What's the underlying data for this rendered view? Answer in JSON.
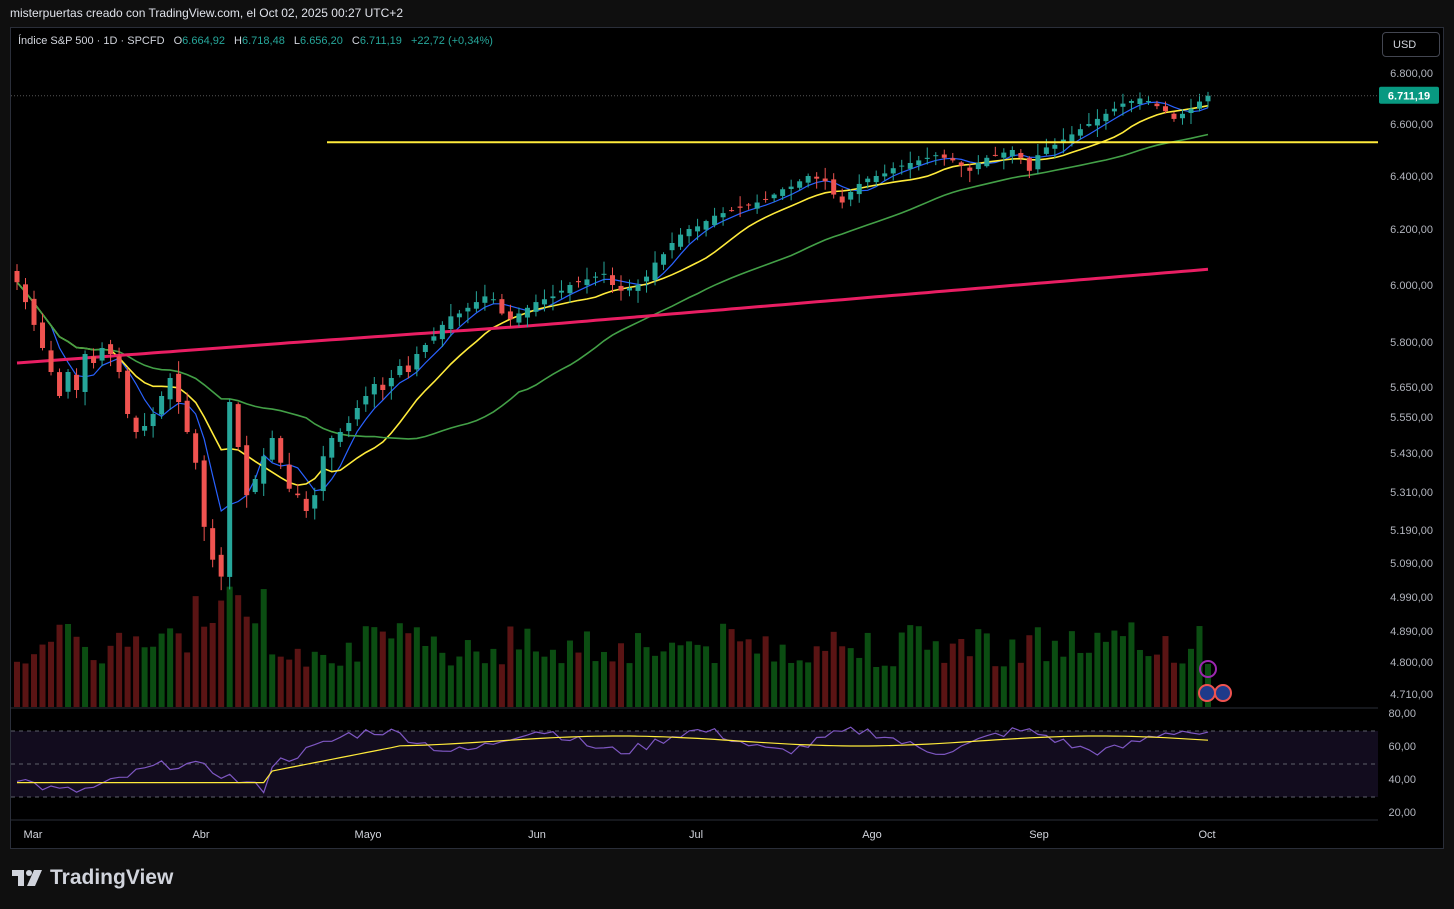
{
  "header": {
    "attribution": "misterpuertas creado con TradingView.com, el Oct 02, 2025 00:27 UTC+2"
  },
  "legend": {
    "symbol": "Índice S&P 500 · 1D · SPCFD",
    "open_label": "O",
    "open": "6.664,92",
    "high_label": "H",
    "high": "6.718,48",
    "low_label": "L",
    "low": "6.656,20",
    "close_label": "C",
    "close": "6.711,19",
    "change": "+22,72 (+0,34%)"
  },
  "currency_button": "USD",
  "last_price_tag": "6.711,19",
  "brand": {
    "name": "TradingView",
    "icon": "tradingview-logo-icon"
  },
  "colors": {
    "up": "#26a69a",
    "down": "#ef5350",
    "ma_blue": "#2962ff",
    "ma_yellow": "#ffeb3b",
    "ma_green": "#43a047",
    "ma_pink": "#e91e63",
    "hline": "#ffeb3b",
    "rsi": "#7e57c2"
  },
  "chart_data": {
    "type": "candlestick",
    "symbol": "SPCFD",
    "interval": "1D",
    "y_axis_ticks": [
      "6.800,00",
      "6.600,00",
      "6.400,00",
      "6.200,00",
      "6.000,00",
      "5.800,00",
      "5.650,00",
      "5.550,00",
      "5.430,00",
      "5.310,00",
      "5.190,00",
      "5.090,00",
      "4.990,00",
      "4.890,00",
      "4.800,00",
      "4.710,00"
    ],
    "x_axis_ticks": [
      "Mar",
      "Abr",
      "Mayo",
      "Jun",
      "Jul",
      "Ago",
      "Sep",
      "Oct"
    ],
    "close_series": [
      6010,
      5940,
      5860,
      5780,
      5700,
      5620,
      5700,
      5640,
      5760,
      5730,
      5780,
      5760,
      5700,
      5560,
      5500,
      5520,
      5560,
      5620,
      5680,
      5600,
      5500,
      5400,
      5200,
      5100,
      5050,
      5600,
      5450,
      5300,
      5350,
      5420,
      5480,
      5400,
      5320,
      5300,
      5250,
      5300,
      5420,
      5480,
      5500,
      5530,
      5580,
      5620,
      5660,
      5640,
      5680,
      5720,
      5700,
      5760,
      5790,
      5820,
      5860,
      5890,
      5900,
      5920,
      5940,
      5960,
      5950,
      5900,
      5880,
      5900,
      5920,
      5940,
      5950,
      5960,
      5980,
      6000,
      6010,
      6020,
      6030,
      6040,
      6000,
      5980,
      5990,
      6000,
      6030,
      6080,
      6110,
      6150,
      6180,
      6200,
      6210,
      6230,
      6250,
      6260,
      6270,
      6280,
      6290,
      6300,
      6310,
      6330,
      6350,
      6360,
      6380,
      6400,
      6390,
      6380,
      6330,
      6300,
      6340,
      6370,
      6390,
      6400,
      6410,
      6430,
      6440,
      6450,
      6460,
      6470,
      6480,
      6470,
      6460,
      6440,
      6420,
      6450,
      6470,
      6480,
      6490,
      6500,
      6470,
      6420,
      6480,
      6510,
      6520,
      6540,
      6560,
      6580,
      6600,
      6620,
      6640,
      6660,
      6680,
      6690,
      6700,
      6690,
      6670,
      6650,
      6620,
      6640,
      6660,
      6688,
      6711
    ],
    "horizontal_line": 6530,
    "moving_averages": [
      "blue",
      "yellow",
      "green",
      "pink"
    ],
    "rsi": {
      "ticks": [
        "80,00",
        "60,00",
        "40,00",
        "20,00"
      ],
      "bands": [
        70,
        50,
        30
      ],
      "last": 66
    }
  }
}
